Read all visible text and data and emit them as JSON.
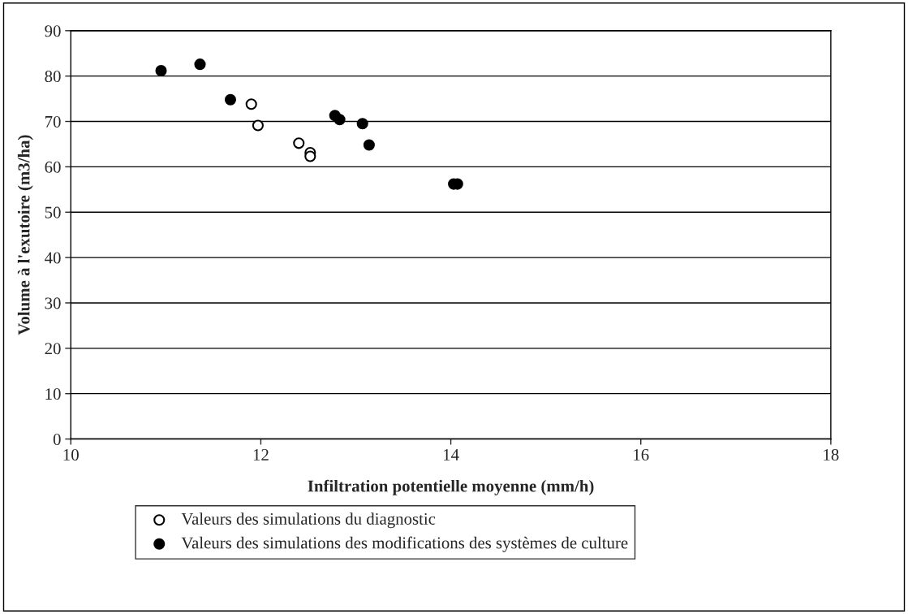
{
  "chart_data": {
    "type": "scatter",
    "xlabel": "Infiltration potentielle moyenne (mm/h)",
    "ylabel": "Volume à l'exutoire (m3/ha)",
    "series": [
      {
        "name": "Valeurs des simulations du diagnostic",
        "color": "#ffffff",
        "x": [
          11.9,
          11.97,
          12.4,
          12.52,
          12.52
        ],
        "values": [
          73.8,
          69.1,
          65.2,
          63.1,
          62.3
        ]
      },
      {
        "name": "Valeurs des simulations des modifications des systèmes de culture",
        "color": "#000000",
        "x": [
          10.95,
          11.36,
          11.68,
          12.78,
          12.83,
          13.07,
          13.14,
          14.03,
          14.07
        ],
        "values": [
          81.2,
          82.6,
          74.8,
          71.3,
          70.4,
          69.5,
          64.8,
          56.2,
          56.2
        ]
      }
    ],
    "xlim": [
      10,
      18
    ],
    "xticks": [
      10,
      12,
      14,
      16,
      18
    ],
    "ylim": [
      0,
      90
    ],
    "yticks": [
      0,
      10,
      20,
      30,
      40,
      50,
      60,
      70,
      80,
      90
    ],
    "grid": "y",
    "legend": "bottom",
    "marker": "circle"
  }
}
